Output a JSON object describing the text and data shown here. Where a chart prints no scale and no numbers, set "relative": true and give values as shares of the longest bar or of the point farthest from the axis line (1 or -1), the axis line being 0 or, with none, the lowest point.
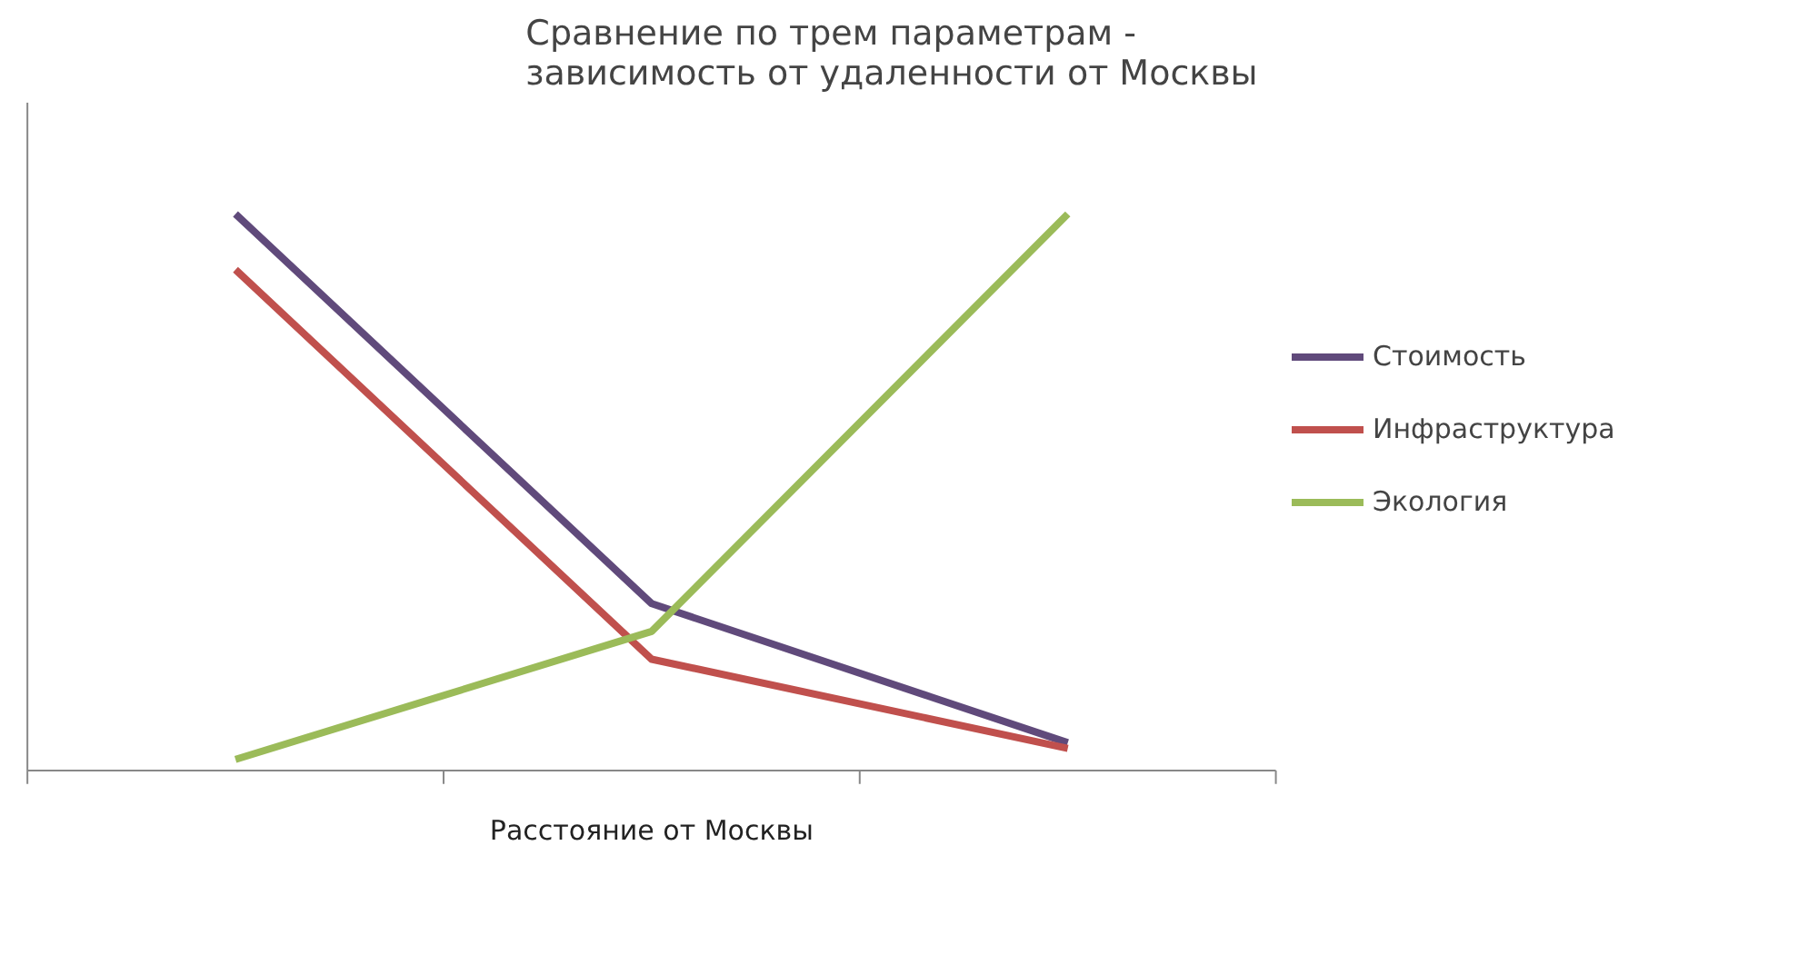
{
  "chart_data": {
    "type": "line",
    "title": "Сравнение по трем параметрам - зависимость от удаленности от Москвы",
    "xlabel": "Расстояние от Москвы",
    "categories": [
      null,
      null,
      null
    ],
    "relative": true,
    "legend": "right",
    "grid": false,
    "marker": "none",
    "line_style": "solid",
    "series": [
      {
        "name": "Стоимость",
        "color": "#604a7b",
        "values": [
          1,
          0.3,
          0.05
        ]
      },
      {
        "name": "Инфраструктура",
        "color": "#c0504d",
        "values": [
          0.9,
          0.2,
          0.04
        ]
      },
      {
        "name": "Экология",
        "color": "#9bbb59",
        "values": [
          0.02,
          0.25,
          1
        ]
      }
    ]
  }
}
